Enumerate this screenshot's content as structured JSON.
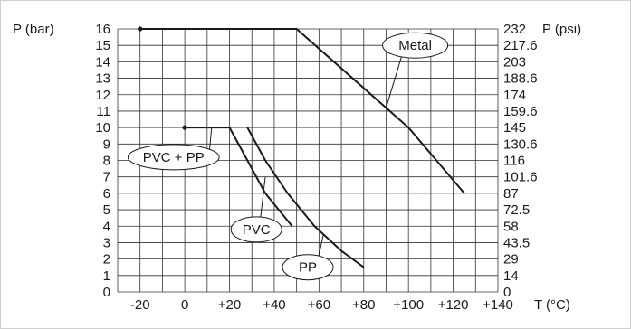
{
  "chart_data": {
    "type": "line",
    "title": "",
    "xlabel": "T (°C)",
    "ylabel_left": "P (bar)",
    "ylabel_right": "P (psi)",
    "xlim": [
      -30,
      140
    ],
    "ylim": [
      0,
      16
    ],
    "grid": true,
    "x_ticks": [
      "-20",
      "0",
      "+20",
      "+40",
      "+60",
      "+80",
      "+100",
      "+120",
      "+140"
    ],
    "x_tick_values": [
      -20,
      0,
      20,
      40,
      60,
      80,
      100,
      120,
      140
    ],
    "y_ticks_left": [
      "0",
      "1",
      "2",
      "3",
      "4",
      "5",
      "6",
      "7",
      "8",
      "9",
      "10",
      "11",
      "12",
      "13",
      "14",
      "15",
      "16"
    ],
    "y_ticks_right": [
      "0",
      "14",
      "29",
      "43.5",
      "58",
      "72.5",
      "87",
      "101.6",
      "116",
      "130.6",
      "145",
      "159.6",
      "174",
      "188.6",
      "203",
      "217.6",
      "232"
    ],
    "series": [
      {
        "name": "Metal",
        "points": [
          [
            -20,
            16
          ],
          [
            50,
            16
          ],
          [
            100,
            10
          ],
          [
            125,
            6
          ]
        ],
        "label_anchor": [
          90,
          11.2
        ],
        "label_at": [
          103,
          15
        ]
      },
      {
        "name": "PVC + PP",
        "points": [
          [
            0,
            10
          ],
          [
            20,
            10
          ]
        ],
        "label_anchor": [
          12,
          10
        ],
        "label_at": [
          -5,
          8.2
        ]
      },
      {
        "name": "PVC",
        "points": [
          [
            20,
            10
          ],
          [
            28,
            8
          ],
          [
            36,
            6
          ],
          [
            48,
            4
          ]
        ],
        "label_anchor": [
          36,
          7
        ],
        "label_at": [
          32,
          3.8
        ]
      },
      {
        "name": "PP",
        "points": [
          [
            28,
            10
          ],
          [
            36,
            8
          ],
          [
            46,
            6
          ],
          [
            58,
            4
          ],
          [
            70,
            2.5
          ],
          [
            80,
            1.5
          ]
        ],
        "label_anchor": [
          62,
          3.5
        ],
        "label_at": [
          55,
          1.5
        ]
      }
    ]
  }
}
